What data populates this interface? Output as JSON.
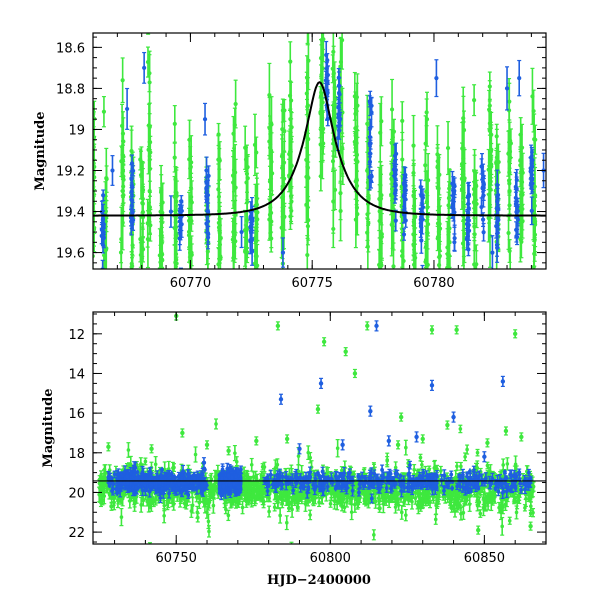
{
  "colors": {
    "green": "#3ee83e",
    "blue": "#1f5fe0",
    "model": "#000000"
  },
  "chart_data": [
    {
      "type": "scatter",
      "title": "",
      "xlabel": "",
      "ylabel": "Magnitude",
      "xlim": [
        60766,
        60784.6
      ],
      "ylim": [
        19.68,
        18.53
      ],
      "y_inverted": true,
      "xticks": [
        60770,
        60775,
        60780
      ],
      "xtick_labels": [
        "60770",
        "60775",
        "60780"
      ],
      "yticks": [
        18.6,
        18.8,
        19.0,
        19.2,
        19.4,
        19.6
      ],
      "ytick_labels": [
        "18.6",
        "18.8",
        "19",
        "19.2",
        "19.4",
        "19.6"
      ],
      "grid": false,
      "model_curve": {
        "baseline": 19.42,
        "peak_mag": 18.77,
        "peak_x": 60775.3,
        "tE": 1.3
      },
      "green_clusters": [
        [
          60766.0,
          19.3
        ],
        [
          60766.5,
          19.5
        ],
        [
          60767.2,
          19.2
        ],
        [
          60767.6,
          19.4
        ],
        [
          60768.0,
          19.5
        ],
        [
          60768.3,
          19.0
        ],
        [
          60768.8,
          19.6
        ],
        [
          60769.4,
          19.5
        ],
        [
          60770.0,
          19.4
        ],
        [
          60770.7,
          19.5
        ],
        [
          60771.2,
          19.4
        ],
        [
          60771.8,
          19.3
        ],
        [
          60772.3,
          19.4
        ],
        [
          60772.7,
          19.5
        ],
        [
          60773.3,
          19.2
        ],
        [
          60773.8,
          19.2
        ],
        [
          60774.1,
          19.2
        ],
        [
          60774.8,
          19.1
        ],
        [
          60775.4,
          18.9
        ],
        [
          60775.9,
          18.9
        ],
        [
          60776.2,
          19.0
        ],
        [
          60776.8,
          19.1
        ],
        [
          60777.3,
          19.3
        ],
        [
          60777.8,
          19.4
        ],
        [
          60778.3,
          19.3
        ],
        [
          60778.7,
          19.4
        ],
        [
          60779.2,
          19.5
        ],
        [
          60779.7,
          19.4
        ],
        [
          60780.2,
          19.4
        ],
        [
          60780.6,
          19.5
        ],
        [
          60781.2,
          19.3
        ],
        [
          60781.7,
          19.4
        ],
        [
          60782.3,
          19.2
        ],
        [
          60782.6,
          19.3
        ],
        [
          60783.1,
          19.3
        ],
        [
          60783.6,
          19.3
        ],
        [
          60784.1,
          19.4
        ]
      ],
      "blue_clusters": [
        [
          60766.4,
          19.42
        ],
        [
          60767.6,
          19.35
        ],
        [
          60769.6,
          19.45
        ],
        [
          60770.7,
          19.38
        ],
        [
          60772.5,
          19.45
        ],
        [
          60775.6,
          18.85
        ],
        [
          60776.1,
          18.95
        ],
        [
          60777.4,
          19.05
        ],
        [
          60778.4,
          19.2
        ],
        [
          60778.8,
          19.32
        ],
        [
          60779.5,
          19.38
        ],
        [
          60780.8,
          19.4
        ],
        [
          60781.4,
          19.42
        ],
        [
          60782.0,
          19.3
        ],
        [
          60782.6,
          19.4
        ],
        [
          60783.4,
          19.35
        ],
        [
          60784.0,
          19.25
        ]
      ],
      "blue_outliers": [
        [
          60766.8,
          19.2
        ],
        [
          60767.4,
          18.9
        ],
        [
          60768.1,
          18.7
        ],
        [
          60769.2,
          19.4
        ],
        [
          60770.6,
          18.95
        ],
        [
          60772.1,
          19.5
        ],
        [
          60773.8,
          19.6
        ],
        [
          60780.1,
          18.75
        ],
        [
          60782.4,
          19.6
        ],
        [
          60783.0,
          18.8
        ],
        [
          60783.5,
          18.75
        ],
        [
          60784.5,
          19.2
        ]
      ]
    },
    {
      "type": "scatter",
      "title": "",
      "xlabel": "HJD−2400000",
      "ylabel": "Magnitude",
      "xlim": [
        60723,
        60870
      ],
      "ylim": [
        22.6,
        10.9
      ],
      "y_inverted": true,
      "xticks": [
        60750,
        60800,
        60850
      ],
      "xtick_labels": [
        "60750",
        "60800",
        "60850"
      ],
      "yticks": [
        12,
        14,
        16,
        18,
        20,
        22
      ],
      "ytick_labels": [
        "12",
        "14",
        "16",
        "18",
        "20",
        "22"
      ],
      "grid": false,
      "baseline": 19.42,
      "band": {
        "x_start": 60725,
        "x_end": 60866,
        "mag_center": 19.45
      },
      "green_outliers": [
        [
          60750,
          11.1
        ],
        [
          60783,
          11.6
        ],
        [
          60798,
          12.4
        ],
        [
          60805,
          12.9
        ],
        [
          60812,
          11.6
        ],
        [
          60833,
          11.8
        ],
        [
          60841,
          11.8
        ],
        [
          60860,
          12.0
        ],
        [
          60808,
          14.0
        ],
        [
          60796,
          15.8
        ],
        [
          60823,
          16.2
        ],
        [
          60838,
          16.6
        ],
        [
          60776,
          17.4
        ],
        [
          60786,
          17.3
        ],
        [
          60752,
          17.0
        ],
        [
          60728,
          17.7
        ],
        [
          60857,
          16.9
        ],
        [
          60848,
          21.9
        ],
        [
          60865,
          21.7
        ],
        [
          60729,
          20.7
        ],
        [
          60816,
          20.8
        ],
        [
          60830,
          17.3
        ],
        [
          60742,
          17.8
        ],
        [
          60760,
          17.6
        ],
        [
          60767,
          17.9
        ],
        [
          60822,
          17.6
        ],
        [
          60851,
          17.5
        ],
        [
          60862,
          17.2
        ]
      ],
      "blue_outliers": [
        [
          60784,
          15.3
        ],
        [
          60797,
          14.5
        ],
        [
          60813,
          15.9
        ],
        [
          60815,
          11.6
        ],
        [
          60833,
          14.6
        ],
        [
          60856,
          14.4
        ],
        [
          60840,
          16.2
        ],
        [
          60828,
          17.2
        ],
        [
          60804,
          17.6
        ],
        [
          60790,
          17.8
        ],
        [
          60759,
          18.5
        ],
        [
          60850,
          18.2
        ],
        [
          60819,
          17.4
        ]
      ]
    }
  ]
}
